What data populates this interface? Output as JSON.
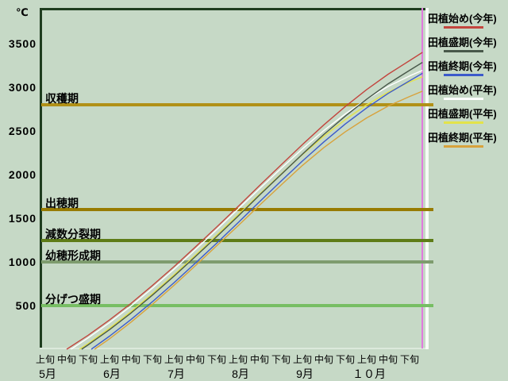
{
  "chart_data": {
    "type": "line",
    "unit": "℃",
    "x_unit": "jun-index (0 = 5月上旬, one step = one 10-day period)",
    "y_axis": {
      "ticks": [
        3500,
        3000,
        2500,
        2000,
        1500,
        1000,
        500
      ],
      "min": 0,
      "max": 3900
    },
    "x_axis": {
      "months": [
        "5月",
        "6月",
        "7月",
        "8月",
        "9月",
        "１０月"
      ],
      "period_labels": [
        "上旬",
        "中旬",
        "下旬"
      ],
      "period_count": 18
    },
    "stage_lines": [
      {
        "label": "収穫期",
        "value": 2800,
        "color": "#B19117"
      },
      {
        "label": "出穂期",
        "value": 1600,
        "color": "#977B00"
      },
      {
        "label": "減数分裂期",
        "value": 1250,
        "color": "#5E7C17"
      },
      {
        "label": "幼穂形成期",
        "value": 1000,
        "color": "#7E9C6E"
      },
      {
        "label": "分げつ盛期",
        "value": 500,
        "color": "#77BE63"
      }
    ],
    "series": [
      {
        "name": "田植始め(今年)",
        "color": "#C3453E",
        "points": [
          [
            1,
            0
          ],
          [
            2,
            160
          ],
          [
            3,
            335
          ],
          [
            4,
            525
          ],
          [
            5,
            730
          ],
          [
            6,
            945
          ],
          [
            7,
            1170
          ],
          [
            8,
            1400
          ],
          [
            9,
            1635
          ],
          [
            10,
            1875
          ],
          [
            11,
            2110
          ],
          [
            12,
            2345
          ],
          [
            13,
            2570
          ],
          [
            14,
            2780
          ],
          [
            15,
            2975
          ],
          [
            16,
            3150
          ],
          [
            17,
            3305
          ],
          [
            17.6,
            3400
          ]
        ]
      },
      {
        "name": "田植盛期(今年)",
        "color": "#48584A",
        "points": [
          [
            1.7,
            0
          ],
          [
            2,
            50
          ],
          [
            3,
            225
          ],
          [
            4,
            415
          ],
          [
            5,
            620
          ],
          [
            6,
            835
          ],
          [
            7,
            1060
          ],
          [
            8,
            1290
          ],
          [
            9,
            1525
          ],
          [
            10,
            1765
          ],
          [
            11,
            2000
          ],
          [
            12,
            2235
          ],
          [
            13,
            2460
          ],
          [
            14,
            2670
          ],
          [
            15,
            2865
          ],
          [
            16,
            3040
          ],
          [
            17,
            3195
          ],
          [
            17.6,
            3285
          ]
        ]
      },
      {
        "name": "田植終期(今年)",
        "color": "#3C5ACB",
        "points": [
          [
            2.15,
            0
          ],
          [
            3,
            150
          ],
          [
            4,
            340
          ],
          [
            5,
            545
          ],
          [
            6,
            760
          ],
          [
            7,
            985
          ],
          [
            8,
            1215
          ],
          [
            9,
            1450
          ],
          [
            10,
            1690
          ],
          [
            11,
            1925
          ],
          [
            12,
            2155
          ],
          [
            13,
            2375
          ],
          [
            14,
            2580
          ],
          [
            15,
            2765
          ],
          [
            16,
            2930
          ],
          [
            17,
            3075
          ],
          [
            17.6,
            3160
          ]
        ]
      },
      {
        "name": "田植始め(平年)",
        "color": "#FFFFFF",
        "points": [
          [
            1.2,
            0
          ],
          [
            2,
            130
          ],
          [
            3,
            305
          ],
          [
            4,
            495
          ],
          [
            5,
            700
          ],
          [
            6,
            915
          ],
          [
            7,
            1140
          ],
          [
            8,
            1370
          ],
          [
            9,
            1605
          ],
          [
            10,
            1840
          ],
          [
            11,
            2070
          ],
          [
            12,
            2295
          ],
          [
            13,
            2505
          ],
          [
            14,
            2695
          ],
          [
            15,
            2865
          ],
          [
            16,
            3010
          ],
          [
            17,
            3130
          ],
          [
            17.6,
            3195
          ]
        ]
      },
      {
        "name": "田植盛期(平年)",
        "color": "#E3E34A",
        "points": [
          [
            1.6,
            0
          ],
          [
            2,
            65
          ],
          [
            3,
            240
          ],
          [
            4,
            430
          ],
          [
            5,
            635
          ],
          [
            6,
            850
          ],
          [
            7,
            1075
          ],
          [
            8,
            1305
          ],
          [
            9,
            1540
          ],
          [
            10,
            1775
          ],
          [
            11,
            2005
          ],
          [
            12,
            2230
          ],
          [
            13,
            2440
          ],
          [
            14,
            2630
          ],
          [
            15,
            2800
          ],
          [
            16,
            2945
          ],
          [
            17,
            3060
          ],
          [
            17.6,
            3120
          ]
        ]
      },
      {
        "name": "田植終期(平年)",
        "color": "#D8A23C",
        "points": [
          [
            2.3,
            0
          ],
          [
            3,
            120
          ],
          [
            4,
            310
          ],
          [
            5,
            515
          ],
          [
            6,
            730
          ],
          [
            7,
            955
          ],
          [
            8,
            1185
          ],
          [
            9,
            1415
          ],
          [
            10,
            1650
          ],
          [
            11,
            1880
          ],
          [
            12,
            2105
          ],
          [
            13,
            2310
          ],
          [
            14,
            2490
          ],
          [
            15,
            2650
          ],
          [
            16,
            2785
          ],
          [
            17,
            2895
          ],
          [
            17.6,
            2955
          ]
        ]
      }
    ],
    "current_date_marker": {
      "period_index": 17.6,
      "color": "#E07ADE"
    },
    "legend_position": "right",
    "grid": false
  }
}
